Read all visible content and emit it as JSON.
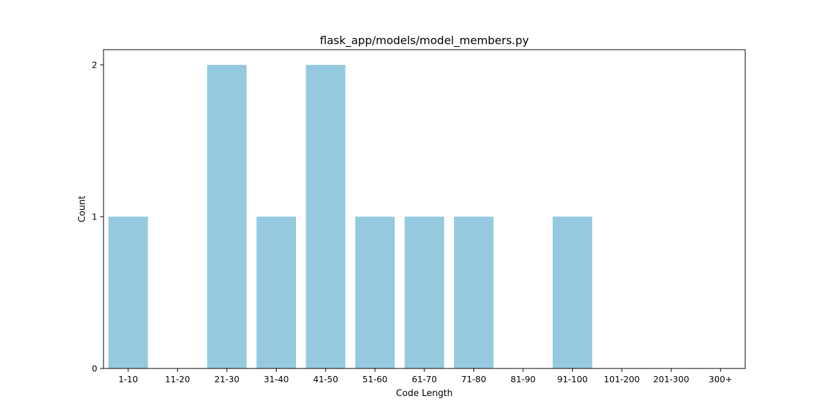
{
  "chart_data": {
    "type": "bar",
    "title": "flask_app/models/model_members.py",
    "xlabel": "Code Length",
    "ylabel": "Count",
    "categories": [
      "1-10",
      "11-20",
      "21-30",
      "31-40",
      "41-50",
      "51-60",
      "61-70",
      "71-80",
      "81-90",
      "91-100",
      "101-200",
      "201-300",
      "300+"
    ],
    "values": [
      1,
      0,
      2,
      1,
      2,
      1,
      1,
      1,
      0,
      1,
      0,
      0,
      0
    ],
    "ylim": [
      0,
      2.1
    ],
    "yticks": [
      0,
      1,
      2
    ],
    "grid": false,
    "legend": "none",
    "bar_color": "#95c9df"
  }
}
